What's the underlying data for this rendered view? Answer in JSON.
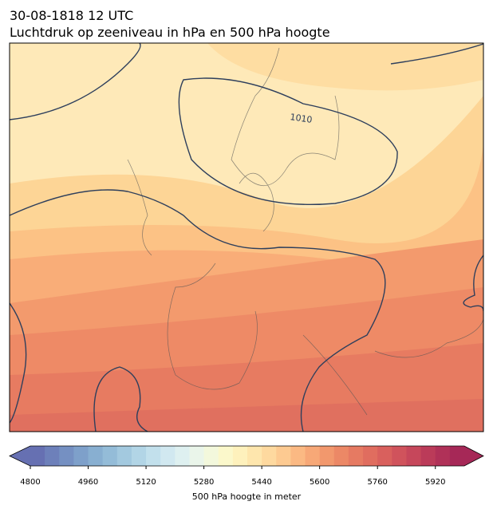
{
  "header": {
    "date": "30-08-1818 12 UTC",
    "title": "Luchtdruk op zeeniveau in hPa en 500 hPa hoogte"
  },
  "map": {
    "contour_labels": [
      "1010"
    ]
  },
  "colorbar": {
    "label": "500 hPa hoogte in meter",
    "range": [
      4800,
      6000
    ],
    "ticks": [
      4800,
      4960,
      5120,
      5280,
      5440,
      5600,
      5760,
      5920
    ],
    "colors": [
      "#6670b2",
      "#6d80ba",
      "#7590c2",
      "#7ea0ca",
      "#88afd1",
      "#94bcd8",
      "#a3c9df",
      "#b2d5e6",
      "#c2e0ec",
      "#d1e8f0",
      "#def0f0",
      "#eaf5ea",
      "#f3f8dc",
      "#fbf8cb",
      "#fef1bc",
      "#fee6ad",
      "#fed99f",
      "#fdca91",
      "#fbb983",
      "#f7a877",
      "#f2986d",
      "#ec8866",
      "#e67a62",
      "#e06d5f",
      "#d9605d",
      "#d0535c",
      "#c6475b",
      "#bb3b59",
      "#b03158",
      "#a62857"
    ]
  }
}
